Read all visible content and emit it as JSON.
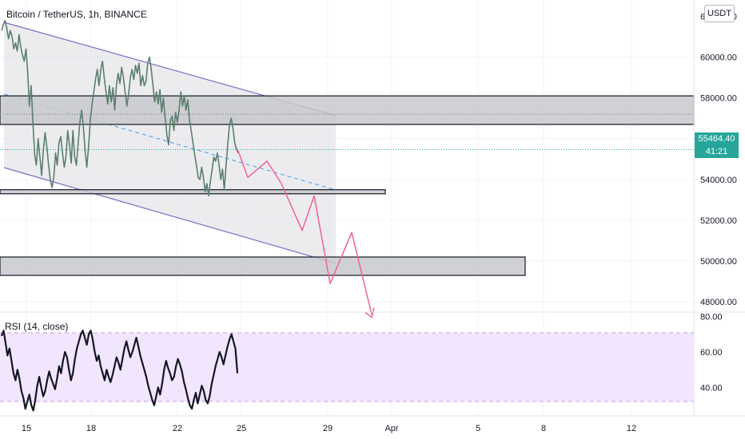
{
  "header": {
    "title": "Bitcoin / TetherUS, 1h, BINANCE",
    "currency": "USDT"
  },
  "price_tag": {
    "price": "55464.40",
    "countdown": "41:21"
  },
  "rsi": {
    "title": "RSI (14, close)"
  },
  "colors": {
    "channel_line": "#7b6fc4",
    "channel_fill": "#dcdde2",
    "zone_fill": "#c8c9cc",
    "mid_dash": "#4a9ee8",
    "projection": "#f06292",
    "rsi_band": "#f2e6ff",
    "rsi_band_line": "#c59ae0",
    "current_price": "#26a69a"
  },
  "chart_data": [
    {
      "type": "line",
      "series": [
        {
          "values": [
            61300,
            61600,
            61800,
            61400,
            60900,
            61300,
            61000,
            60400,
            60700,
            60300,
            61100,
            60500,
            60100,
            59800,
            60400,
            59300,
            57600,
            58600,
            56800,
            55200,
            54700,
            56000,
            55100,
            54200,
            55400,
            56300,
            55600,
            54700,
            54000,
            53600,
            54100,
            55300,
            54700,
            55800,
            56100,
            55300,
            54600,
            55100,
            56400,
            55700,
            54800,
            56400,
            55100,
            54700,
            55800,
            56800,
            57400,
            56600,
            55400,
            54600,
            55600,
            56900,
            57700,
            58300,
            58900,
            59400,
            58600,
            59400,
            59800,
            59000,
            58300,
            57700,
            58600,
            57800,
            58500,
            57400,
            58600,
            59200,
            58700,
            59500,
            59000,
            58300,
            57600,
            58200,
            59000,
            59400,
            58900,
            59600,
            59200,
            59700,
            58600,
            59100,
            58600,
            58800,
            59700,
            60000,
            59400,
            58600,
            57800,
            58300,
            57700,
            58400,
            57300,
            58000,
            57000,
            56200,
            55700,
            56900,
            57100,
            56400,
            57300,
            56800,
            57400,
            58300,
            57600,
            58100,
            57400,
            57900,
            56900,
            56400,
            55800,
            55200,
            54700,
            54100,
            54000,
            54600,
            54100,
            53400,
            53800,
            53200,
            53900,
            54500,
            55100,
            54900,
            55300,
            54700,
            54000,
            54500,
            53500,
            54700,
            55700,
            56700,
            57000,
            56500,
            55800,
            55500,
            55300
          ]
        }
      ],
      "y_axis": {
        "ticks": [
          "60000.00",
          "58000.00",
          "56000.00",
          "54000.00",
          "52000.00",
          "50000.00",
          "48000.00"
        ],
        "top_partial_label": "62000.00",
        "range": [
          47500,
          62800
        ]
      },
      "x_axis": {
        "ticks": [
          "15",
          "18",
          "22",
          "25",
          "29",
          "Apr",
          "5",
          "8",
          "12"
        ]
      },
      "projection_path": [
        55400,
        54100,
        54900,
        53800,
        51500,
        53200,
        48900,
        51400,
        47400
      ],
      "zones": [
        {
          "from": 56700,
          "to": 58100
        },
        {
          "from": 53300,
          "to": 53500
        },
        {
          "from": 49300,
          "to": 50200
        }
      ],
      "dotted_levels": [
        57200
      ],
      "current_price_line": 55464.4,
      "grid": true
    },
    {
      "type": "line",
      "series": [
        {
          "name": "RSI (14, close)",
          "values": [
            69,
            72,
            65,
            58,
            62,
            55,
            48,
            44,
            50,
            45,
            38,
            34,
            28,
            32,
            36,
            30,
            27,
            33,
            41,
            46,
            40,
            35,
            38,
            44,
            49,
            45,
            42,
            39,
            45,
            52,
            48,
            55,
            60,
            57,
            50,
            44,
            48,
            56,
            62,
            66,
            70,
            72,
            68,
            64,
            70,
            72,
            67,
            60,
            55,
            58,
            52,
            48,
            44,
            50,
            46,
            43,
            47,
            52,
            57,
            54,
            50,
            56,
            62,
            66,
            61,
            57,
            60,
            64,
            68,
            63,
            58,
            54,
            50,
            46,
            41,
            37,
            33,
            30,
            35,
            40,
            36,
            42,
            50,
            55,
            51,
            48,
            44,
            46,
            52,
            56,
            53,
            49,
            43,
            39,
            34,
            30,
            28,
            33,
            37,
            31,
            36,
            41,
            38,
            33,
            31,
            35,
            42,
            47,
            52,
            56,
            60,
            57,
            53,
            58,
            63,
            67,
            70,
            66,
            62,
            48
          ]
        }
      ],
      "y_axis": {
        "ticks": [
          "80.00",
          "60.00",
          "40.00"
        ],
        "range": [
          24,
          82
        ]
      },
      "bands": [
        30,
        70
      ]
    }
  ]
}
